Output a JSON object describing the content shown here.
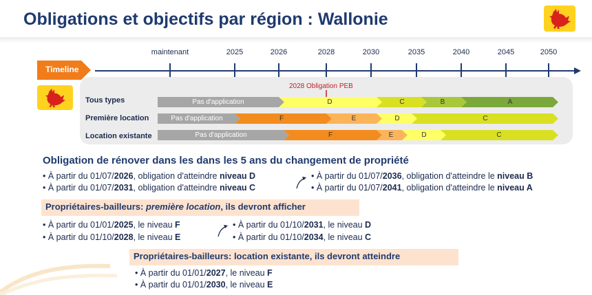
{
  "title": "Obligations et objectifs par région : Wallonie",
  "timeline": {
    "label": "Timeline",
    "years": [
      "maintenant",
      "2025",
      "2026",
      "2028",
      "2030",
      "2035",
      "2040",
      "2045",
      "2050"
    ]
  },
  "peb_annotation": "2028 Obligation PEB",
  "rows": [
    {
      "label": "Tous types",
      "segments": [
        {
          "text": "Pas d'application",
          "color": "#a6a6a6"
        },
        {
          "text": "D",
          "color": "#ffff66"
        },
        {
          "text": "C",
          "color": "#d9e021"
        },
        {
          "text": "B",
          "color": "#a8c83a"
        },
        {
          "text": "A",
          "color": "#7aa83a"
        }
      ]
    },
    {
      "label": "Première location",
      "segments": [
        {
          "text": "Pas d'application",
          "color": "#a6a6a6"
        },
        {
          "text": "F",
          "color": "#f28c1e"
        },
        {
          "text": "E",
          "color": "#fbb45a"
        },
        {
          "text": "D",
          "color": "#ffff66"
        },
        {
          "text": "C",
          "color": "#d9e021"
        }
      ]
    },
    {
      "label": "Location existante",
      "segments": [
        {
          "text": "Pas d'application",
          "color": "#a6a6a6"
        },
        {
          "text": "F",
          "color": "#f28c1e"
        },
        {
          "text": "E",
          "color": "#fbb45a"
        },
        {
          "text": "D",
          "color": "#ffff66"
        },
        {
          "text": "C",
          "color": "#d9e021"
        }
      ]
    }
  ],
  "renovation": {
    "heading": "Obligation de rénover dans les dans les 5 ans du changement de propriété",
    "items": [
      {
        "pre": "• À partir du 01/07/",
        "year": "2026",
        "mid": ", obligation d'atteindre ",
        "level": "niveau D"
      },
      {
        "pre": "• À partir du 01/07/",
        "year": "2031",
        "mid": ", obligation d'atteindre ",
        "level": "niveau C"
      },
      {
        "pre": "• À partir du 01/07/",
        "year": "2036",
        "mid": ", obligation d'atteindre le ",
        "level": "niveau B"
      },
      {
        "pre": "• À partir du 01/07/",
        "year": "2041",
        "mid": ", obligation d'atteindre le ",
        "level": "niveau A"
      }
    ]
  },
  "premiere_location": {
    "box_pre": "Propriétaires-bailleurs: ",
    "box_em": "première location",
    "box_post": ", ils devront afficher",
    "items": [
      {
        "pre": "• À partir du 01/01/",
        "year": "2025",
        "mid": ", le niveau ",
        "level": "F"
      },
      {
        "pre": "• À partir du 01/10/",
        "year": "2028",
        "mid": ", le niveau ",
        "level": "E"
      },
      {
        "pre": "• À partir du 01/10/",
        "year": "2031",
        "mid": ", le niveau ",
        "level": "D"
      },
      {
        "pre": "• À partir du 01/10/",
        "year": "2034",
        "mid": ", le niveau ",
        "level": "C"
      }
    ]
  },
  "location_existante": {
    "box": "Propriétaires-bailleurs: location existante, ils devront atteindre",
    "items": [
      {
        "pre": "• À partir du 01/01/",
        "year": "2027",
        "mid": ", le niveau ",
        "level": "F"
      },
      {
        "pre": "• À partir du 01/01/",
        "year": "2030",
        "mid": ", le niveau ",
        "level": "E"
      }
    ]
  },
  "colors": {
    "title": "#1f3a6e",
    "timeline_orange": "#f07c1a",
    "axis_navy": "#1f3a6e",
    "box_fill": "#fde3cf",
    "wallonia_yellow": "#ffd21f",
    "rooster_red": "#d9221c"
  },
  "icons": {
    "logo": "wallonia-rooster-icon",
    "arrows": "curved-arrow-icon"
  }
}
